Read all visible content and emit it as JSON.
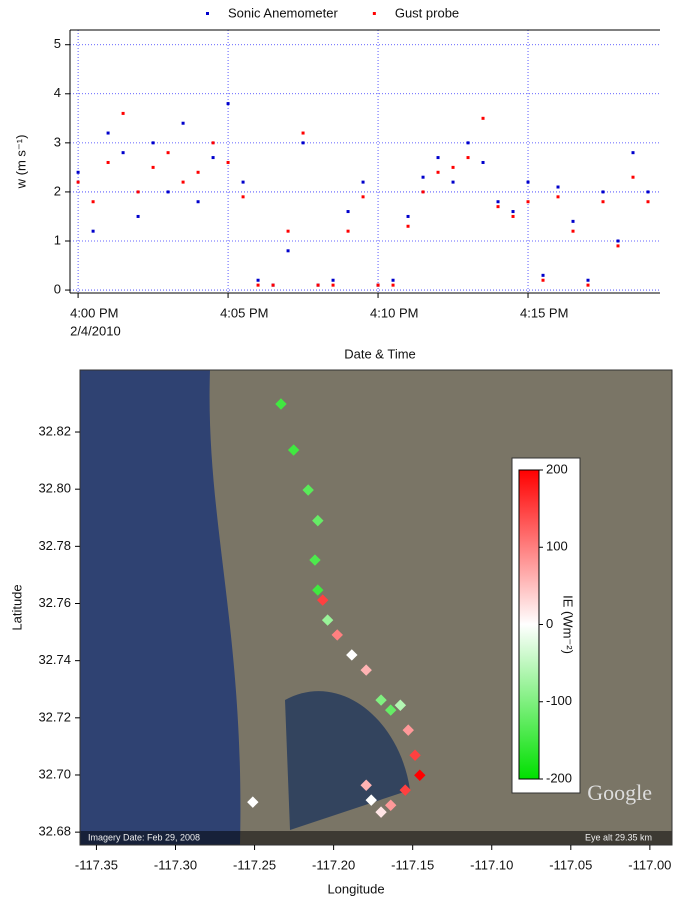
{
  "chart_data": [
    {
      "type": "scatter",
      "legend": "top",
      "x_label": "Date & Time",
      "y_label": "w (m s⁻¹)",
      "xtick_sublabel": "2/4/2010",
      "x": [
        0,
        0.5,
        1,
        1.5,
        2,
        2.5,
        3,
        3.5,
        4,
        4.5,
        5,
        5.5,
        6,
        6.5,
        7,
        7.5,
        8,
        8.5,
        9,
        9.5,
        10,
        10.5,
        11,
        11.5,
        12,
        12.5,
        13,
        13.5,
        14,
        14.5,
        15,
        15.5,
        16,
        16.5,
        17,
        17.5,
        18,
        18.5,
        19
      ],
      "series": [
        {
          "name": "Sonic Anemometer",
          "color": "#0000cc",
          "values": [
            2.4,
            1.2,
            3.2,
            2.8,
            1.5,
            3.0,
            2.0,
            3.4,
            1.8,
            2.7,
            3.8,
            2.2,
            0.2,
            0.1,
            0.8,
            3.0,
            0.1,
            0.2,
            1.6,
            2.2,
            0.1,
            0.2,
            1.5,
            2.3,
            2.7,
            2.2,
            3.0,
            2.6,
            1.8,
            1.6,
            2.2,
            0.3,
            2.1,
            1.4,
            0.2,
            2.0,
            1.0,
            2.8,
            2.0
          ]
        },
        {
          "name": "Gust probe",
          "color": "#ff0000",
          "values": [
            2.2,
            1.8,
            2.6,
            3.6,
            2.0,
            2.5,
            2.8,
            2.2,
            2.4,
            3.0,
            2.6,
            1.9,
            0.1,
            0.1,
            1.2,
            3.2,
            0.1,
            0.1,
            1.2,
            1.9,
            0.1,
            0.1,
            1.3,
            2.0,
            2.4,
            2.5,
            2.7,
            3.5,
            1.7,
            1.5,
            1.8,
            0.2,
            1.9,
            1.2,
            0.1,
            1.8,
            0.9,
            2.3,
            1.8
          ]
        }
      ],
      "xlim": [
        -0.27,
        19.4
      ],
      "xticks": [
        {
          "value": 0,
          "label": "4:00 PM"
        },
        {
          "value": 5,
          "label": "4:05 PM"
        },
        {
          "value": 10,
          "label": "4:10 PM"
        },
        {
          "value": 15,
          "label": "4:15 PM"
        }
      ],
      "ylim": [
        -0.06,
        5.3
      ],
      "yticks": [
        0,
        1,
        2,
        3,
        4,
        5
      ],
      "grid": true
    },
    {
      "type": "map",
      "x_label": "Longitude",
      "y_label": "Latitude",
      "colorbar_label": "IE (Wm⁻²)",
      "map_texts": [
        "Imagery Date: Feb 29, 2008",
        "Eye alt 29.35 km",
        "Google"
      ],
      "x": [
        -117.2333,
        -117.2253,
        -117.2161,
        -117.21,
        -117.2118,
        -117.21,
        -117.2069,
        -117.2038,
        -117.1977,
        -117.1885,
        -117.1794,
        -117.17,
        -117.1639,
        -117.1578,
        -117.1528,
        -117.1485,
        -117.1455,
        -117.1547,
        -117.1639,
        -117.17,
        -117.1762,
        -117.1794,
        -117.2511
      ],
      "y": [
        32.8298,
        32.8137,
        32.7997,
        32.789,
        32.7752,
        32.7647,
        32.7612,
        32.7542,
        32.749,
        32.742,
        32.7367,
        32.7262,
        32.7227,
        32.7244,
        32.7157,
        32.7069,
        32.6999,
        32.6947,
        32.6894,
        32.687,
        32.6912,
        32.6964,
        32.6905
      ],
      "values": [
        -150,
        -150,
        -130,
        -120,
        -140,
        -150,
        150,
        -80,
        100,
        0,
        60,
        -100,
        -120,
        -60,
        80,
        150,
        200,
        150,
        80,
        20,
        0,
        60,
        0
      ],
      "colormap": [
        "#00e000",
        "#ffffff",
        "#ff0000"
      ],
      "clim": [
        -200,
        200
      ],
      "cticks": [
        200,
        100,
        0,
        -100,
        -200
      ],
      "xlim": [
        -117.3604,
        -116.986
      ],
      "xticks": [
        -117.35,
        {
          "value": -117.3,
          "label": "-117.30"
        },
        -117.25,
        {
          "value": -117.2,
          "label": "-117.20"
        },
        -117.15,
        {
          "value": -117.1,
          "label": "-117.10"
        },
        -117.05,
        {
          "value": -117,
          "label": "-117.00"
        }
      ],
      "ylim": [
        32.6755,
        32.8417
      ],
      "yticks": [
        32.68,
        {
          "value": 32.7,
          "label": "32.70"
        },
        32.72,
        32.74,
        32.76,
        32.78,
        {
          "value": 32.8,
          "label": "32.80"
        },
        32.82
      ]
    }
  ]
}
